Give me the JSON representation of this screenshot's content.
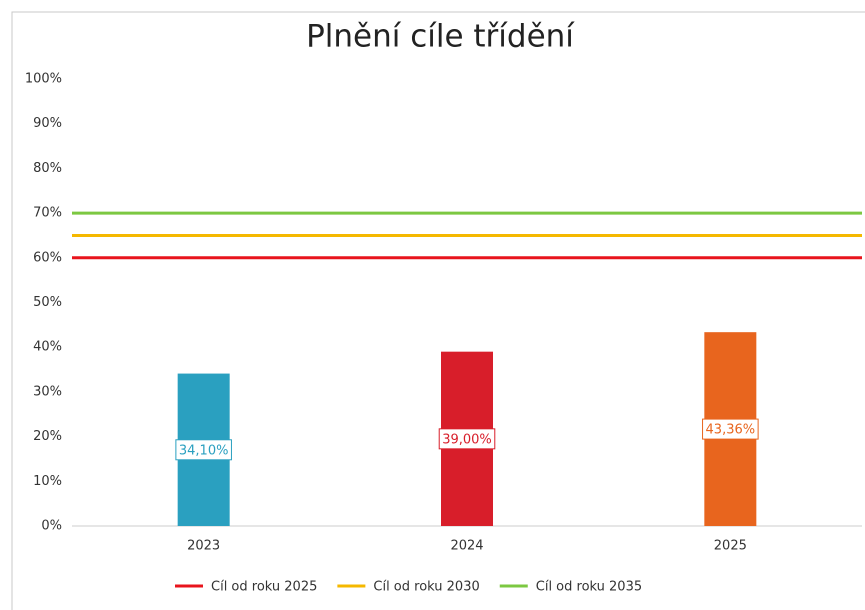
{
  "chart_data": {
    "type": "bar",
    "title": "Plnění cíle třídění",
    "categories": [
      "2023",
      "2024",
      "2025"
    ],
    "values": [
      34.1,
      39.0,
      43.36
    ],
    "value_labels": [
      "34,10%",
      "39,00%",
      "43,36%"
    ],
    "colors": [
      "#2aa0c0",
      "#d81e2a",
      "#e8651e"
    ],
    "ylim": [
      0,
      100
    ],
    "yticks": [
      {
        "value": 0,
        "label": "0%"
      },
      {
        "value": 10,
        "label": "10%"
      },
      {
        "value": 20,
        "label": "20%"
      },
      {
        "value": 30,
        "label": "30%"
      },
      {
        "value": 40,
        "label": "40%"
      },
      {
        "value": 50,
        "label": "50%"
      },
      {
        "value": 60,
        "label": "60%"
      },
      {
        "value": 70,
        "label": "70%"
      },
      {
        "value": 80,
        "label": "80%"
      },
      {
        "value": 90,
        "label": "90%"
      },
      {
        "value": 100,
        "label": "100%"
      }
    ],
    "grid": false,
    "lines": [
      {
        "name": "Cíl od roku 2025",
        "color": "#e8141c",
        "value": 60
      },
      {
        "name": "Cíl od roku 2030",
        "color": "#f5b800",
        "value": 65
      },
      {
        "name": "Cíl od roku 2035",
        "color": "#7cc841",
        "value": 70
      }
    ]
  }
}
